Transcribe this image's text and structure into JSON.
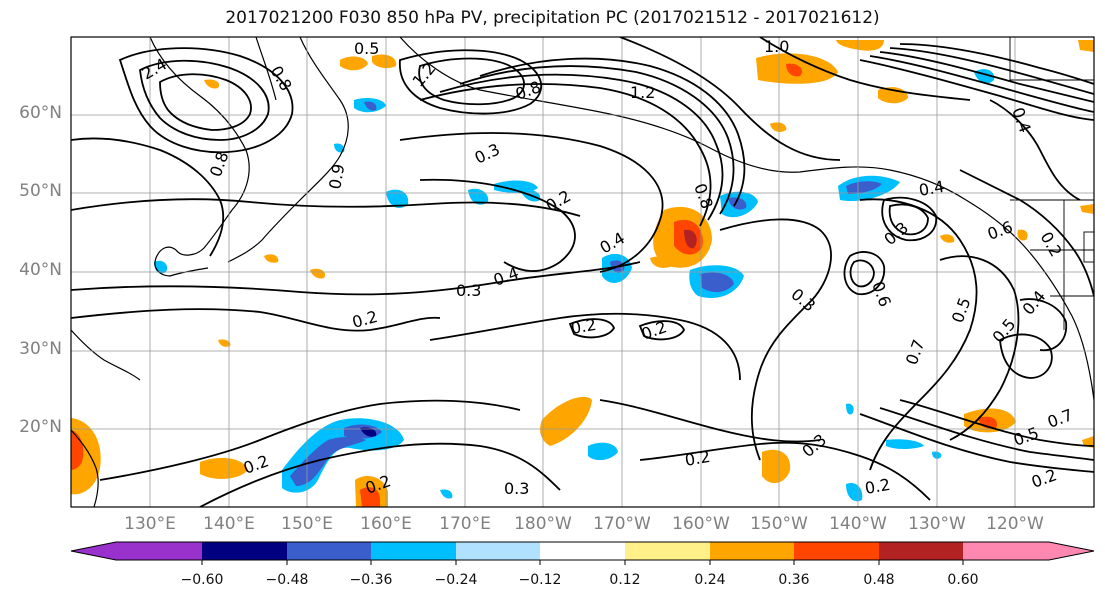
{
  "title": "2017021200 F030 850 hPa PV, precipitation PC (2017021512 - 2017021612)",
  "map": {
    "region": "North Pacific",
    "lat_labels": [
      "60°N",
      "50°N",
      "40°N",
      "30°N",
      "20°N"
    ],
    "lon_labels": [
      "130°E",
      "140°E",
      "150°E",
      "160°E",
      "170°E",
      "180°W",
      "170°W",
      "160°W",
      "150°W",
      "140°W",
      "130°W",
      "120°W"
    ],
    "contour_labels": [
      {
        "text": "0.5"
      },
      {
        "text": "2.4"
      },
      {
        "text": "0.8"
      },
      {
        "text": "1.2"
      },
      {
        "text": "1.0"
      },
      {
        "text": "1.2"
      },
      {
        "text": "0.8"
      },
      {
        "text": "0.3"
      },
      {
        "text": "0.2"
      },
      {
        "text": "0.4"
      },
      {
        "text": "0.4"
      },
      {
        "text": "0.3"
      },
      {
        "text": "0.2"
      },
      {
        "text": "0.2"
      },
      {
        "text": "0.2"
      },
      {
        "text": "0.3"
      },
      {
        "text": "0.6"
      },
      {
        "text": "0.4"
      },
      {
        "text": "0.3"
      },
      {
        "text": "0.5"
      },
      {
        "text": "0.5"
      },
      {
        "text": "0.4"
      },
      {
        "text": "0.7"
      },
      {
        "text": "0.2"
      },
      {
        "text": "0.2"
      },
      {
        "text": "0.3"
      },
      {
        "text": "0.2"
      },
      {
        "text": "0.3"
      },
      {
        "text": "0.2"
      },
      {
        "text": "0.2"
      },
      {
        "text": "0.5"
      },
      {
        "text": "0.7"
      },
      {
        "text": "0.8"
      },
      {
        "text": "0.9"
      },
      {
        "text": "0.6"
      },
      {
        "text": "0.4"
      },
      {
        "text": "0.8"
      },
      {
        "text": "0.2"
      }
    ]
  },
  "colorbar": {
    "colors": [
      "#9932cc",
      "#000080",
      "#3a5fcd",
      "#00bfff",
      "#b0e2ff",
      "#ffffff",
      "#fff08a",
      "#ffa500",
      "#ff4500",
      "#b22222",
      "#ff88b0"
    ],
    "ticks": [
      "−0.60",
      "−0.48",
      "−0.36",
      "−0.24",
      "−0.12",
      "0.12",
      "0.24",
      "0.36",
      "0.48",
      "0.60"
    ]
  }
}
